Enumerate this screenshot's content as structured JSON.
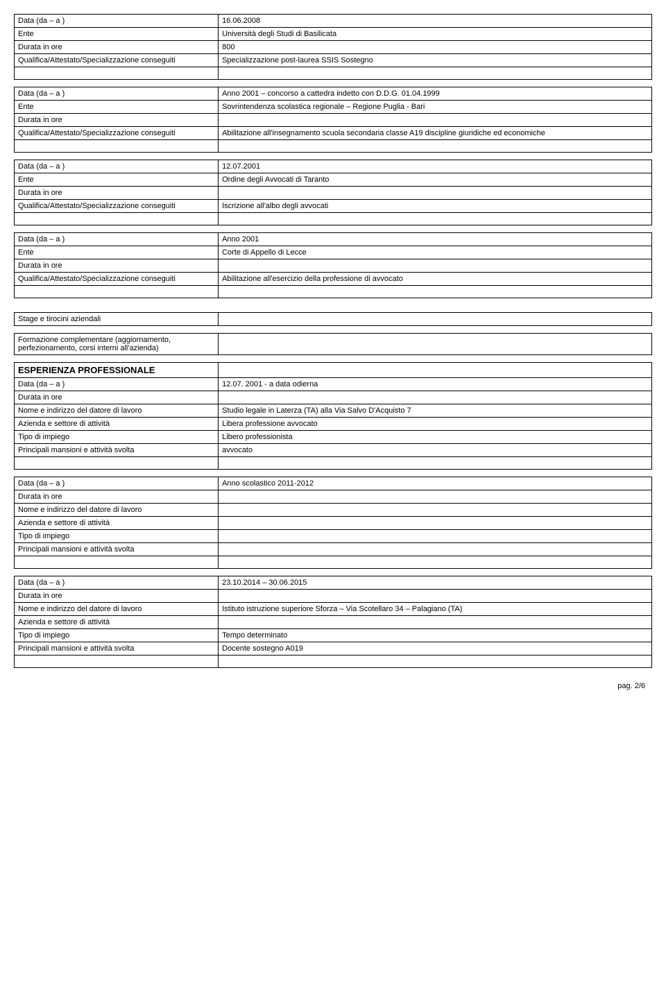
{
  "block1": {
    "data_label": "Data (da – a )",
    "data_value": "16.06.2008",
    "ente_label": "Ente",
    "ente_value": "Università degli Studi di Basilicata",
    "durata_label": "Durata in ore",
    "durata_value": "800",
    "qual_label": "Qualifica/Attestato/Specializzazione conseguiti",
    "qual_value": "Specializzazione post-laurea SSIS Sostegno"
  },
  "block2": {
    "data_label": "Data (da – a )",
    "data_value": "Anno 2001 – concorso a cattedra indetto con D.D.G. 01.04.1999",
    "ente_label": "Ente",
    "ente_value": "Sovrintendenza scolastica regionale – Regione Puglia - Bari",
    "durata_label": "Durata in ore",
    "qual_label": "Qualifica/Attestato/Specializzazione conseguiti",
    "qual_value": "Abilitazione all'insegnamento scuola secondaria classe A19 discipline giuridiche ed economiche"
  },
  "block3": {
    "data_label": "Data (da – a )",
    "data_value": "12.07.2001",
    "ente_label": "Ente",
    "ente_value": "Ordine degli Avvocati di Taranto",
    "durata_label": "Durata in ore",
    "qual_label": "Qualifica/Attestato/Specializzazione conseguiti",
    "qual_value": "Iscrizione all'albo degli avvocati"
  },
  "block4": {
    "data_label": "Data (da – a )",
    "data_value": "Anno 2001",
    "ente_label": "Ente",
    "ente_value": "Corte di Appello di Lecce",
    "durata_label": "Durata in ore",
    "qual_label": "Qualifica/Attestato/Specializzazione conseguiti",
    "qual_value": "Abilitazione all'esercizio della professione di avvocato"
  },
  "stage_label": "Stage e tirocini aziendali",
  "formazione_label": "Formazione complementare (aggiornamento, perfezionamento, corsi interni all'azienda)",
  "esperienza_title": "ESPERIENZA PROFESSIONALE",
  "exp1": {
    "data_label": "Data (da – a )",
    "data_value": "12.07. 2001  -  a data odierna",
    "durata_label": "Durata in ore",
    "nome_label": "Nome e indirizzo del datore di lavoro",
    "nome_value": "Studio legale in Laterza (TA) alla Via Salvo D'Acquisto 7",
    "azienda_label": "Azienda e settore di attività",
    "azienda_value": "Libera professione avvocato",
    "tipo_label": "Tipo di impiego",
    "tipo_value": "Libero professionista",
    "mansioni_label": "Principali mansioni e attività svolta",
    "mansioni_value": "avvocato"
  },
  "exp2": {
    "data_label": "Data (da – a )",
    "data_value": "Anno scolastico 2011-2012",
    "durata_label": "Durata in ore",
    "nome_label": "Nome e indirizzo del datore di lavoro",
    "azienda_label": "Azienda e settore di attività",
    "tipo_label": "Tipo di impiego",
    "mansioni_label": "Principali mansioni e attività svolta"
  },
  "exp3": {
    "data_label": "Data (da – a )",
    "data_value": "23.10.2014 – 30.06.2015",
    "durata_label": "Durata in ore",
    "nome_label": "Nome e indirizzo del datore di lavoro",
    "nome_value": "Istituto istruzione superiore Sforza – Via Scotellaro 34 – Palagiano (TA)",
    "azienda_label": "Azienda e settore di attività",
    "tipo_label": "Tipo di impiego",
    "tipo_value": "Tempo determinato",
    "mansioni_label": "Principali mansioni e attività svolta",
    "mansioni_value": "Docente sostegno A019"
  },
  "footer": "pag. 2/6"
}
